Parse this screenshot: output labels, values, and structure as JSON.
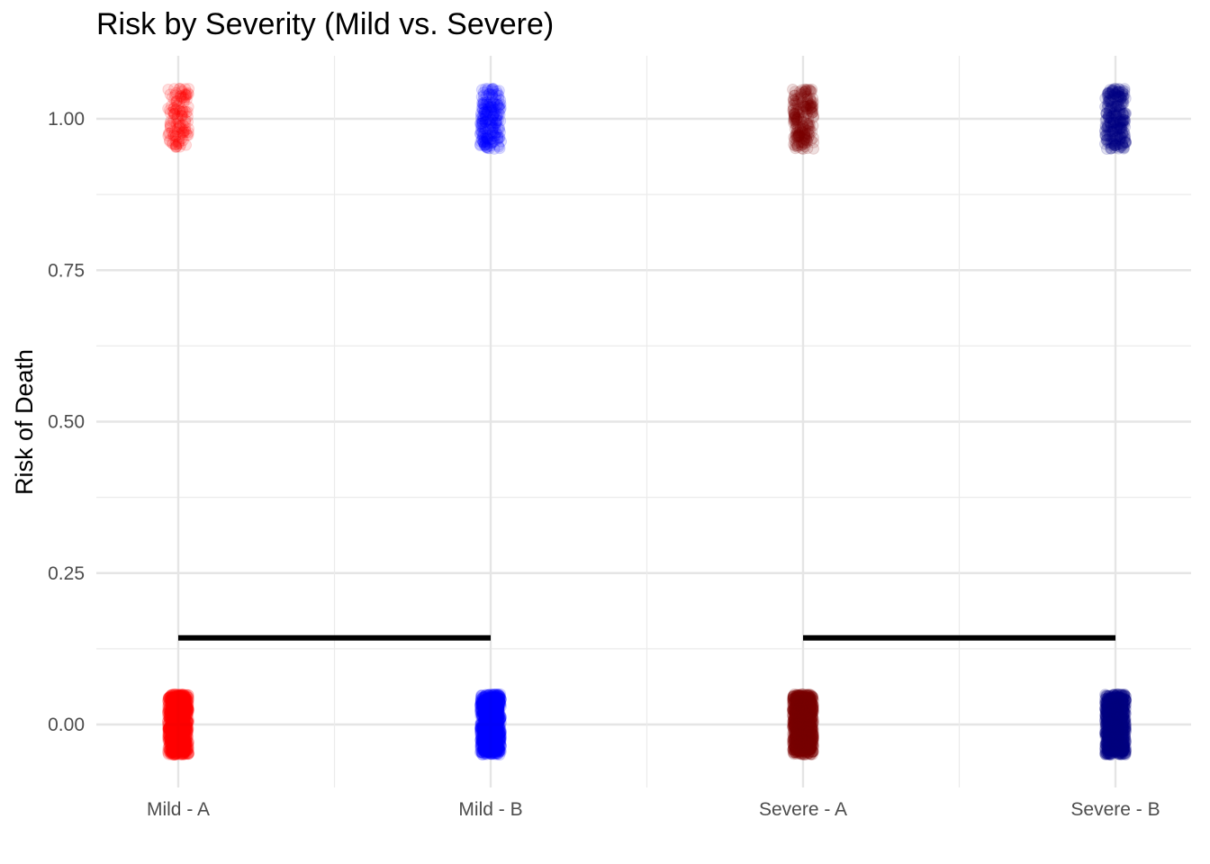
{
  "chart_data": {
    "type": "scatter",
    "title": "Risk by Severity (Mild vs. Severe)",
    "xlabel": "",
    "ylabel": "Risk of Death",
    "categories": [
      "Mild - A",
      "Mild - B",
      "Severe - A",
      "Severe - B"
    ],
    "y_ticks": [
      "0.00",
      "0.25",
      "0.50",
      "0.75",
      "1.00"
    ],
    "y_tick_values": [
      0,
      0.25,
      0.5,
      0.75,
      1.0
    ],
    "ylim": [
      -0.1,
      1.1
    ],
    "grid": true,
    "legend": "none",
    "jitter": {
      "x": 0.11,
      "y": 0.05
    },
    "series": [
      {
        "category": "Mild - A",
        "color": "#ff0000",
        "groups": [
          {
            "y": 1.0,
            "count": 120,
            "alpha": 0.12
          },
          {
            "y": 0.0,
            "count": 1000,
            "alpha": 0.12
          }
        ]
      },
      {
        "category": "Mild - B",
        "color": "#0000ff",
        "groups": [
          {
            "y": 1.0,
            "count": 200,
            "alpha": 0.12
          },
          {
            "y": 0.0,
            "count": 1000,
            "alpha": 0.12
          }
        ]
      },
      {
        "category": "Severe - A",
        "color": "#7a0000",
        "groups": [
          {
            "y": 1.0,
            "count": 200,
            "alpha": 0.12
          },
          {
            "y": 0.0,
            "count": 1000,
            "alpha": 0.12
          }
        ]
      },
      {
        "category": "Severe - B",
        "color": "#000080",
        "groups": [
          {
            "y": 1.0,
            "count": 250,
            "alpha": 0.12
          },
          {
            "y": 0.0,
            "count": 1000,
            "alpha": 0.12
          }
        ]
      }
    ],
    "segments": [
      {
        "from": "Mild - A",
        "to": "Mild - B",
        "y": 0.143,
        "color": "#000000"
      },
      {
        "from": "Severe - A",
        "to": "Severe - B",
        "y": 0.143,
        "color": "#000000"
      }
    ]
  }
}
